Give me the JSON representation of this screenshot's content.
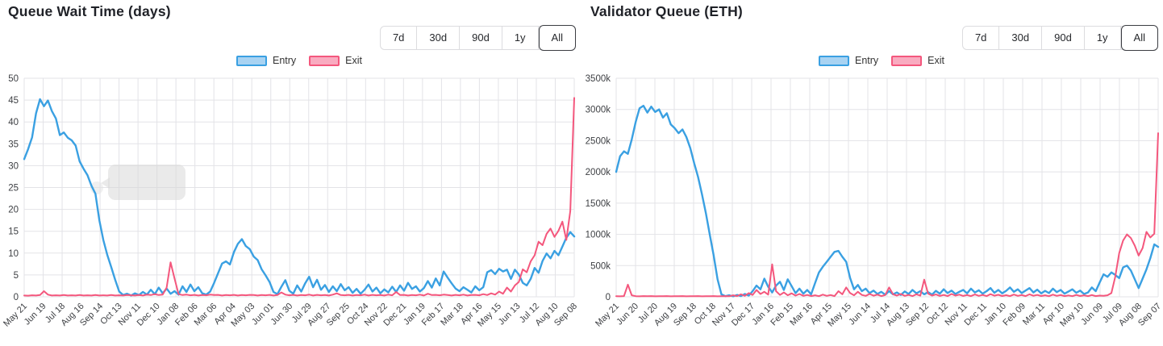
{
  "colors": {
    "grid": "#e3e3e7",
    "axis_text": "#3e4044",
    "title_text": "#1f2127",
    "entry_line": "#3aa0e2",
    "entry_fill": "#a9d3f2",
    "exit_line": "#f4577d",
    "exit_fill": "#f9abc0"
  },
  "controls": {
    "range_buttons": [
      "7d",
      "30d",
      "90d",
      "1y",
      "All"
    ],
    "active_range": "All"
  },
  "chart_data": [
    {
      "type": "line",
      "title": "Queue Wait Time (days)",
      "xlabel": "",
      "ylabel": "",
      "unit": "days",
      "grid": true,
      "legend_position": "top",
      "ylim": [
        0,
        50
      ],
      "y_tick_values": [
        0,
        5,
        10,
        15,
        20,
        25,
        30,
        35,
        40,
        45,
        50
      ],
      "y_ticks": [
        "0",
        "5",
        "10",
        "15",
        "20",
        "25",
        "30",
        "35",
        "40",
        "45",
        "50"
      ],
      "x_tick_labels": [
        "May 21",
        "Jun 19",
        "Jul 18",
        "Aug 16",
        "Sep 14",
        "Oct 13",
        "Nov 11",
        "Dec 10",
        "Jan 08",
        "Feb 06",
        "Mar 06",
        "Apr 04",
        "May 03",
        "Jun 01",
        "Jun 30",
        "Jul 29",
        "Aug 27",
        "Sep 25",
        "Oct 24",
        "Nov 22",
        "Dec 21",
        "Jan 19",
        "Feb 17",
        "Mar 18",
        "Apr 16",
        "May 15",
        "Jun 13",
        "Jul 12",
        "Aug 10",
        "Sep 08"
      ],
      "series": [
        {
          "name": "Entry",
          "color": "#3aa0e2",
          "fill": "#a9d3f2",
          "values": [
            31.5,
            33.8,
            36.5,
            42,
            45.2,
            43.6,
            44.9,
            42.5,
            40.8,
            37,
            37.6,
            36.4,
            35.8,
            34.6,
            31,
            29.3,
            27.8,
            25.4,
            23.6,
            17.5,
            13,
            9.6,
            6.8,
            3.9,
            1.2,
            0.4,
            0.7,
            0.3,
            0.8,
            0.4,
            1.1,
            0.5,
            1.6,
            0.6,
            2.1,
            0.8,
            1.9,
            0.7,
            1.3,
            0.5,
            2.4,
            1.1,
            2.8,
            1.3,
            2.2,
            0.8,
            0.5,
            1.2,
            3.2,
            5.4,
            7.6,
            8.1,
            7.4,
            10.2,
            12.1,
            13.2,
            11.6,
            10.9,
            9.2,
            8.4,
            6.3,
            4.9,
            3.4,
            1.1,
            0.6,
            2.3,
            3.8,
            1.4,
            0.7,
            2.6,
            1.2,
            3.1,
            4.6,
            2.2,
            3.9,
            1.6,
            2.7,
            1.1,
            2.4,
            1.3,
            2.9,
            1.5,
            2.2,
            0.9,
            1.8,
            0.7,
            1.6,
            2.8,
            1.2,
            2.1,
            0.8,
            1.7,
            1,
            2.3,
            1.1,
            2.6,
            1.4,
            3.2,
            1.8,
            2.4,
            1.2,
            2,
            3.6,
            2.1,
            4.2,
            2.6,
            5.8,
            4.4,
            3.1,
            1.9,
            1.3,
            2.2,
            1.6,
            1,
            2.4,
            1.5,
            2.2,
            5.6,
            6.1,
            5.2,
            6.4,
            5.8,
            6.2,
            4.1,
            6.2,
            5.1,
            3.2,
            2.6,
            4.1,
            6.6,
            5.5,
            8.2,
            9.9,
            8.8,
            10.5,
            9.5,
            11.5,
            13.5,
            14.8,
            13.8
          ]
        },
        {
          "name": "Exit",
          "color": "#f4577d",
          "fill": "#f9abc0",
          "values": [
            0.3,
            0.25,
            0.35,
            0.3,
            0.4,
            1.3,
            0.5,
            0.3,
            0.35,
            0.3,
            0.4,
            0.3,
            0.35,
            0.3,
            0.4,
            0.3,
            0.35,
            0.3,
            0.4,
            0.3,
            0.35,
            0.3,
            0.4,
            0.3,
            0.35,
            0.3,
            0.4,
            0.35,
            0.3,
            0.4,
            0.3,
            0.5,
            0.4,
            0.6,
            0.4,
            0.5,
            2.1,
            7.9,
            4.2,
            0.6,
            0.4,
            0.5,
            0.35,
            0.45,
            0.3,
            0.4,
            0.35,
            0.5,
            0.4,
            0.45,
            0.3,
            0.4,
            0.35,
            0.45,
            0.3,
            0.4,
            0.35,
            0.45,
            0.4,
            0.3,
            0.4,
            0.35,
            0.45,
            0.3,
            0.4,
            1,
            0.5,
            0.35,
            0.45,
            0.3,
            0.4,
            0.35,
            0.5,
            0.3,
            0.45,
            0.35,
            0.4,
            0.3,
            0.5,
            0.8,
            0.4,
            0.35,
            0.45,
            0.3,
            0.4,
            0.35,
            0.5,
            0.3,
            0.45,
            0.35,
            0.4,
            0.3,
            0.5,
            0.35,
            1.1,
            0.4,
            0.45,
            0.3,
            0.4,
            0.35,
            0.5,
            0.3,
            0.7,
            0.4,
            0.45,
            0.35,
            0.5,
            0.4,
            0.3,
            0.45,
            0.35,
            0.5,
            0.3,
            0.4,
            0.45,
            0.35,
            0.6,
            0.4,
            0.8,
            0.5,
            1.2,
            0.7,
            2.1,
            1.2,
            2.6,
            3.4,
            6.3,
            5.6,
            8.1,
            9.5,
            12.6,
            11.8,
            14.4,
            15.6,
            13.7,
            15.1,
            17.2,
            13,
            19.6,
            45.5
          ]
        }
      ]
    },
    {
      "type": "line",
      "title": "Validator Queue (ETH)",
      "xlabel": "",
      "ylabel": "",
      "unit": "thousand ETH (k)",
      "grid": true,
      "legend_position": "top",
      "ylim": [
        0,
        3500
      ],
      "y_tick_values": [
        0,
        500,
        1000,
        1500,
        2000,
        2500,
        3000,
        3500
      ],
      "y_ticks": [
        "0",
        "500k",
        "1000k",
        "1500k",
        "2000k",
        "2500k",
        "3000k",
        "3500k"
      ],
      "x_tick_labels": [
        "May 21",
        "Jun 20",
        "Jul 20",
        "Aug 19",
        "Sep 18",
        "Oct 18",
        "Nov 17",
        "Dec 17",
        "Jan 16",
        "Feb 15",
        "Mar 16",
        "Apr 15",
        "May 15",
        "Jun 14",
        "Jul 14",
        "Aug 13",
        "Sep 12",
        "Oct 12",
        "Nov 11",
        "Dec 11",
        "Jan 10",
        "Feb 09",
        "Mar 11",
        "Apr 10",
        "May 10",
        "Jun 09",
        "Jul 09",
        "Aug 08",
        "Sep 07"
      ],
      "series": [
        {
          "name": "Entry",
          "color": "#3aa0e2",
          "fill": "#a9d3f2",
          "values": [
            2000,
            2250,
            2330,
            2290,
            2520,
            2800,
            3020,
            3060,
            2950,
            3045,
            2960,
            3000,
            2870,
            2940,
            2760,
            2700,
            2620,
            2680,
            2560,
            2380,
            2140,
            1920,
            1640,
            1340,
            1000,
            660,
            280,
            40,
            10,
            25,
            8,
            30,
            12,
            45,
            20,
            90,
            180,
            120,
            290,
            160,
            70,
            180,
            240,
            110,
            280,
            170,
            60,
            130,
            50,
            110,
            40,
            220,
            390,
            480,
            560,
            640,
            720,
            735,
            640,
            560,
            300,
            120,
            190,
            90,
            130,
            60,
            100,
            45,
            80,
            35,
            90,
            40,
            70,
            30,
            85,
            45,
            110,
            55,
            90,
            40,
            75,
            35,
            95,
            50,
            120,
            60,
            100,
            45,
            80,
            110,
            55,
            130,
            70,
            105,
            50,
            90,
            140,
            65,
            110,
            55,
            95,
            150,
            80,
            120,
            60,
            100,
            140,
            70,
            115,
            55,
            95,
            60,
            130,
            75,
            110,
            50,
            85,
            120,
            65,
            100,
            45,
            70,
            150,
            90,
            230,
            360,
            320,
            390,
            350,
            300,
            470,
            500,
            420,
            280,
            140,
            290,
            440,
            620,
            840,
            800
          ]
        },
        {
          "name": "Exit",
          "color": "#f4577d",
          "fill": "#f9abc0",
          "values": [
            10,
            8,
            12,
            195,
            25,
            10,
            8,
            12,
            9,
            11,
            8,
            10,
            9,
            12,
            8,
            10,
            9,
            11,
            8,
            10,
            9,
            12,
            8,
            10,
            9,
            11,
            8,
            10,
            12,
            9,
            25,
            12,
            40,
            15,
            60,
            30,
            110,
            45,
            80,
            35,
            520,
            90,
            30,
            70,
            25,
            55,
            20,
            45,
            15,
            30,
            12,
            25,
            10,
            35,
            15,
            28,
            12,
            90,
            40,
            150,
            60,
            25,
            80,
            30,
            15,
            45,
            18,
            35,
            12,
            28,
            150,
            40,
            20,
            45,
            15,
            30,
            12,
            40,
            18,
            275,
            50,
            20,
            38,
            14,
            30,
            12,
            45,
            20,
            35,
            14,
            28,
            11,
            38,
            16,
            30,
            12,
            42,
            18,
            32,
            13,
            26,
            11,
            36,
            15,
            28,
            12,
            40,
            17,
            30,
            13,
            25,
            10,
            35,
            15,
            28,
            11,
            22,
            10,
            30,
            13,
            24,
            10,
            28,
            12,
            20,
            15,
            25,
            60,
            320,
            700,
            900,
            1000,
            940,
            820,
            660,
            780,
            1040,
            950,
            1010,
            2620
          ]
        }
      ]
    }
  ]
}
